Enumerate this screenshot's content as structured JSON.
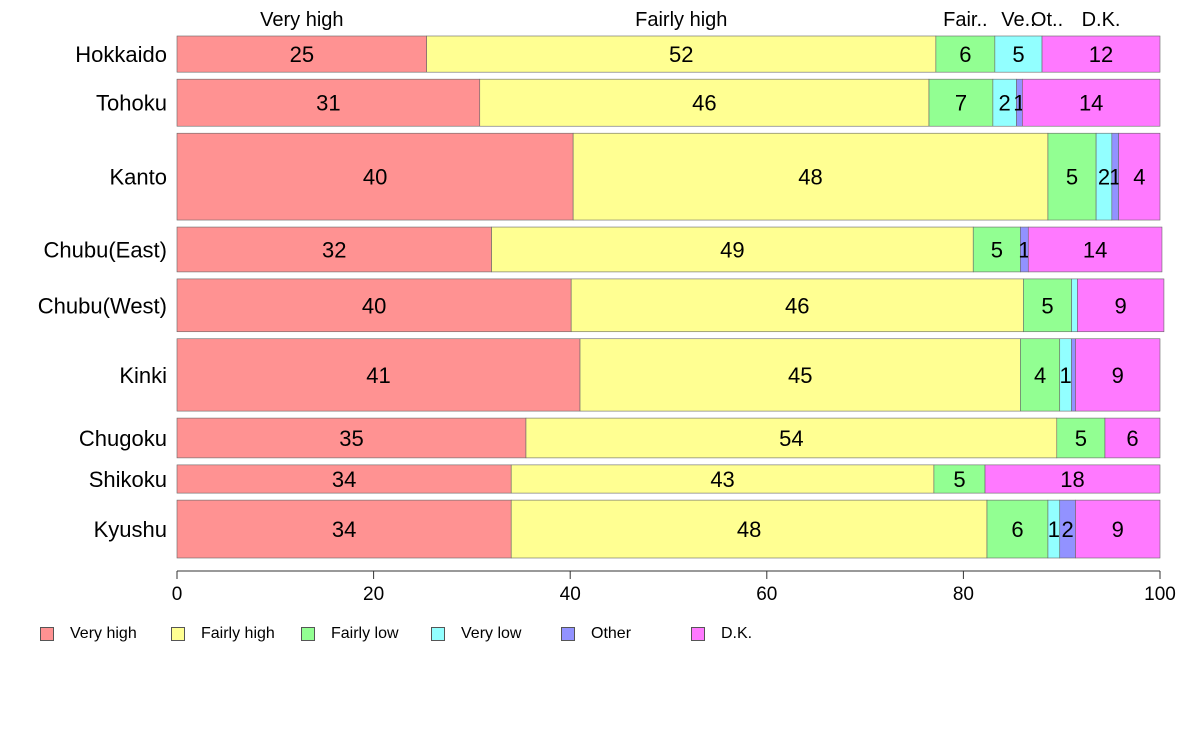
{
  "chart_data": {
    "type": "bar",
    "orientation": "horizontal",
    "stacked": true,
    "percent": true,
    "categories": [
      "Hokkaido",
      "Tohoku",
      "Kanto",
      "Chubu(East)",
      "Chubu(West)",
      "Kinki",
      "Chugoku",
      "Shikoku",
      "Kyushu"
    ],
    "relative_sizes": [
      0.5,
      0.65,
      1.2,
      0.62,
      0.73,
      1.0,
      0.55,
      0.39,
      0.8
    ],
    "series": [
      {
        "name": "Very high",
        "color": "#ff9292",
        "values": [
          25.4,
          30.8,
          40.3,
          32.0,
          40.1,
          41.0,
          35.5,
          34.0,
          34.0
        ]
      },
      {
        "name": "Fairly high",
        "color": "#ffff92",
        "values": [
          51.8,
          45.7,
          48.3,
          49.0,
          46.0,
          44.8,
          54.0,
          43.0,
          48.4
        ]
      },
      {
        "name": "Fairly low",
        "color": "#92ff92",
        "values": [
          6.0,
          6.5,
          4.9,
          4.8,
          4.9,
          4.0,
          4.9,
          5.2,
          6.2
        ]
      },
      {
        "name": "Very low",
        "color": "#92ffff",
        "values": [
          4.8,
          2.4,
          1.6,
          0.0,
          0.6,
          1.2,
          0.0,
          0.0,
          1.2
        ]
      },
      {
        "name": "Other",
        "color": "#9292ff",
        "values": [
          0.0,
          0.6,
          0.7,
          0.8,
          0.0,
          0.4,
          0.0,
          0.0,
          1.6
        ]
      },
      {
        "name": "D.K.",
        "color": "#ff79ff",
        "values": [
          12.0,
          14.0,
          4.2,
          13.6,
          8.8,
          8.6,
          5.6,
          17.8,
          8.6
        ]
      }
    ],
    "data_labels": [
      [
        "25",
        "52",
        "6",
        "5",
        "",
        "12"
      ],
      [
        "31",
        "46",
        "7",
        "2",
        "1",
        "14"
      ],
      [
        "40",
        "48",
        "5",
        "2",
        "1",
        "4"
      ],
      [
        "32",
        "49",
        "5",
        "",
        "1",
        "14"
      ],
      [
        "40",
        "46",
        "5",
        "",
        "",
        "9"
      ],
      [
        "41",
        "45",
        "4",
        "1",
        "",
        "9"
      ],
      [
        "35",
        "54",
        "5",
        "",
        "",
        "6"
      ],
      [
        "34",
        "43",
        "5",
        "",
        "",
        "18"
      ],
      [
        "34",
        "48",
        "6",
        "1",
        "2",
        "9"
      ]
    ],
    "top_labels": [
      "Very high",
      "Fairly high",
      "Fair..",
      "Ve..",
      "Ot..",
      "D.K."
    ],
    "xlim": [
      0,
      100
    ],
    "xticks": [
      "0",
      "20",
      "40",
      "60",
      "80",
      "100"
    ],
    "grid": false,
    "legend_position": "bottom-left",
    "title": "",
    "xlabel": "",
    "ylabel": ""
  }
}
